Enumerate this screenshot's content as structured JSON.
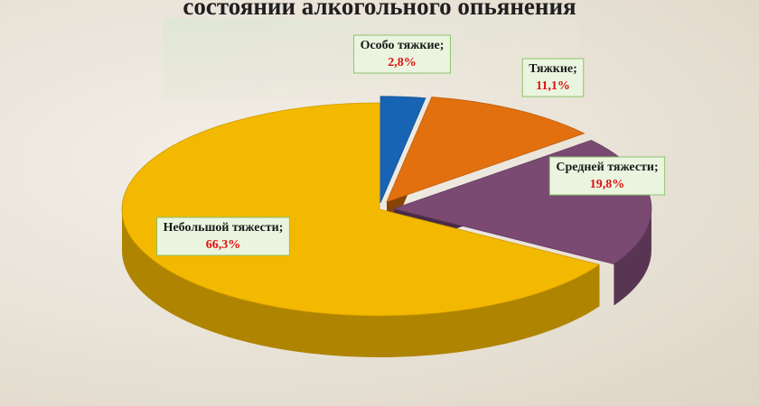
{
  "chart_data": {
    "type": "pie",
    "title": "состоянии алкогольного опьянения",
    "categories": [
      "Особо тяжкие;",
      "Тяжкие;",
      "Средней тяжести;",
      "Небольшой тяжести;"
    ],
    "values": [
      2.8,
      11.1,
      19.8,
      66.3
    ],
    "value_labels": [
      "2,8%",
      "11,1%",
      "19,8%",
      "66,3%"
    ],
    "colors": [
      "#1763b4",
      "#e2700f",
      "#7a4a72",
      "#f3b800"
    ]
  }
}
